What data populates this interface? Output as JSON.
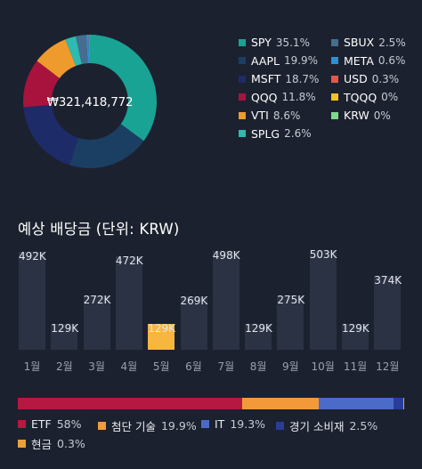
{
  "portfolio": {
    "total": "₩321,418,772",
    "holdings": [
      {
        "name": "SPY",
        "pct": "35.1%",
        "value": 35.1,
        "color": "#19a394"
      },
      {
        "name": "AAPL",
        "pct": "19.9%",
        "value": 19.9,
        "color": "#1b3e63"
      },
      {
        "name": "MSFT",
        "pct": "18.7%",
        "value": 18.7,
        "color": "#1e2b69"
      },
      {
        "name": "QQQ",
        "pct": "11.8%",
        "value": 11.8,
        "color": "#a8133d"
      },
      {
        "name": "VTI",
        "pct": "8.6%",
        "value": 8.6,
        "color": "#ee9a2c"
      },
      {
        "name": "SPLG",
        "pct": "2.6%",
        "value": 2.6,
        "color": "#2dbab0"
      },
      {
        "name": "SBUX",
        "pct": "2.5%",
        "value": 2.5,
        "color": "#456d8f"
      },
      {
        "name": "META",
        "pct": "0.6%",
        "value": 0.6,
        "color": "#2e8fd1"
      },
      {
        "name": "USD",
        "pct": "0.3%",
        "value": 0.3,
        "color": "#e2584a"
      },
      {
        "name": "TQQQ",
        "pct": "0%",
        "value": 0,
        "color": "#f7c21e"
      },
      {
        "name": "KRW",
        "pct": "0%",
        "value": 0,
        "color": "#7dd98a"
      }
    ]
  },
  "dividends": {
    "title": "예상 배당금 (단위: KRW)",
    "highlight_color": "#f7b73f",
    "chart_data": {
      "type": "bar",
      "categories": [
        "1월",
        "2월",
        "3월",
        "4월",
        "5월",
        "6월",
        "7월",
        "8월",
        "9월",
        "10월",
        "11월",
        "12월"
      ],
      "values": [
        492000,
        129000,
        272000,
        472000,
        129000,
        269000,
        498000,
        129000,
        275000,
        503000,
        129000,
        374000
      ],
      "value_labels": [
        "492K",
        "129K",
        "272K",
        "472K",
        "129K",
        "269K",
        "498K",
        "129K",
        "275K",
        "503K",
        "129K",
        "374K"
      ],
      "highlighted_index": 4,
      "ylim": [
        0,
        503000
      ]
    }
  },
  "sectors": {
    "items": [
      {
        "name": "ETF",
        "pct": "58%",
        "value": 58,
        "color": "#b51840"
      },
      {
        "name": "첨단 기술",
        "pct": "19.9%",
        "value": 19.9,
        "color": "#f29a3a"
      },
      {
        "name": "IT",
        "pct": "19.3%",
        "value": 19.3,
        "color": "#4b6bc9"
      },
      {
        "name": "경기 소비재",
        "pct": "2.5%",
        "value": 2.5,
        "color": "#283d99"
      },
      {
        "name": "현금",
        "pct": "0.3%",
        "value": 0.3,
        "color": "#e8a23b"
      }
    ]
  }
}
